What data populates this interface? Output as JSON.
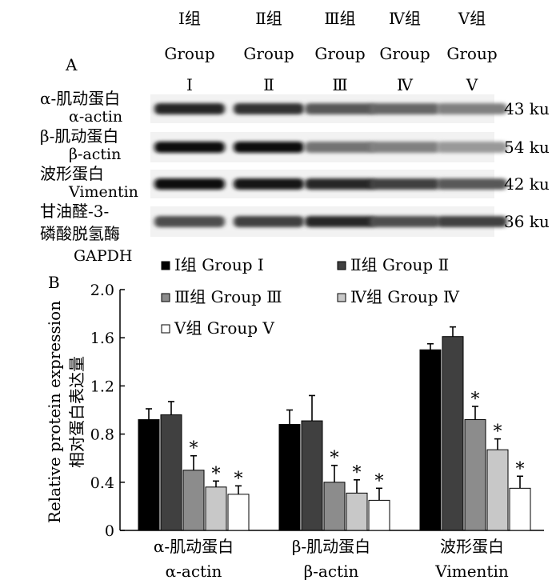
{
  "panel_a": {
    "label": "A",
    "group_headers": [
      {
        "cn": "Ⅰ组",
        "en": "Group",
        "roman": "Ⅰ"
      },
      {
        "cn": "Ⅱ组",
        "en": "Group",
        "roman": "Ⅱ"
      },
      {
        "cn": "Ⅲ组",
        "en": "Group",
        "roman": "Ⅲ"
      },
      {
        "cn": "Ⅳ组",
        "en": "Group",
        "roman": "Ⅳ"
      },
      {
        "cn": "Ⅴ组",
        "en": "Group",
        "roman": "Ⅴ"
      }
    ],
    "rows": [
      {
        "cn": "α-肌动蛋白",
        "en": "α-actin",
        "size": "43 ku",
        "intensity": [
          0.85,
          0.8,
          0.65,
          0.6,
          0.5
        ]
      },
      {
        "cn": "β-肌动蛋白",
        "en": "β-actin",
        "size": "54 ku",
        "intensity": [
          0.95,
          0.95,
          0.55,
          0.5,
          0.4
        ]
      },
      {
        "cn": "波形蛋白",
        "en": "Vimentin",
        "size": "42 ku",
        "intensity": [
          0.95,
          0.9,
          0.85,
          0.75,
          0.65
        ]
      },
      {
        "cn": "甘油醛-3-",
        "cn2": "磷酸脱氢酶",
        "en": "GAPDH",
        "size": "36 ku",
        "intensity": [
          0.7,
          0.75,
          0.85,
          0.7,
          0.75
        ]
      }
    ]
  },
  "chart_data": {
    "type": "bar",
    "panel_label": "B",
    "categories": [
      {
        "cn": "α-肌动蛋白",
        "en": "α-actin"
      },
      {
        "cn": "β-肌动蛋白",
        "en": "β-actin"
      },
      {
        "cn": "波形蛋白",
        "en": "Vimentin"
      }
    ],
    "series": [
      {
        "name": "Ⅰ组 Group Ⅰ",
        "color": "#000000",
        "values": [
          0.92,
          0.88,
          1.5
        ],
        "errors": [
          0.09,
          0.12,
          0.05
        ],
        "significant": [
          false,
          false,
          false
        ]
      },
      {
        "name": "Ⅱ组 Group Ⅱ",
        "color": "#404040",
        "values": [
          0.96,
          0.91,
          1.61
        ],
        "errors": [
          0.11,
          0.21,
          0.08
        ],
        "significant": [
          false,
          false,
          false
        ]
      },
      {
        "name": "Ⅲ组 Group Ⅲ",
        "color": "#8c8c8c",
        "values": [
          0.5,
          0.4,
          0.92
        ],
        "errors": [
          0.12,
          0.14,
          0.11
        ],
        "significant": [
          true,
          true,
          true
        ]
      },
      {
        "name": "Ⅳ组 Group Ⅳ",
        "color": "#c8c8c8",
        "values": [
          0.36,
          0.31,
          0.67
        ],
        "errors": [
          0.05,
          0.11,
          0.09
        ],
        "significant": [
          true,
          true,
          true
        ]
      },
      {
        "name": "Ⅴ组 Group Ⅴ",
        "color": "#ffffff",
        "values": [
          0.3,
          0.25,
          0.35
        ],
        "errors": [
          0.07,
          0.1,
          0.1
        ],
        "significant": [
          true,
          true,
          true
        ]
      }
    ],
    "ylabel_cn": "相对蛋白表达量",
    "ylabel_en": "Relative protein expression",
    "ylim": [
      0,
      2.0
    ],
    "yticks": [
      "0",
      "0.4",
      "0.8",
      "1.2",
      "1.6",
      "2.0"
    ],
    "significance_marker": "*",
    "legend_placement": "top",
    "grid": false
  }
}
